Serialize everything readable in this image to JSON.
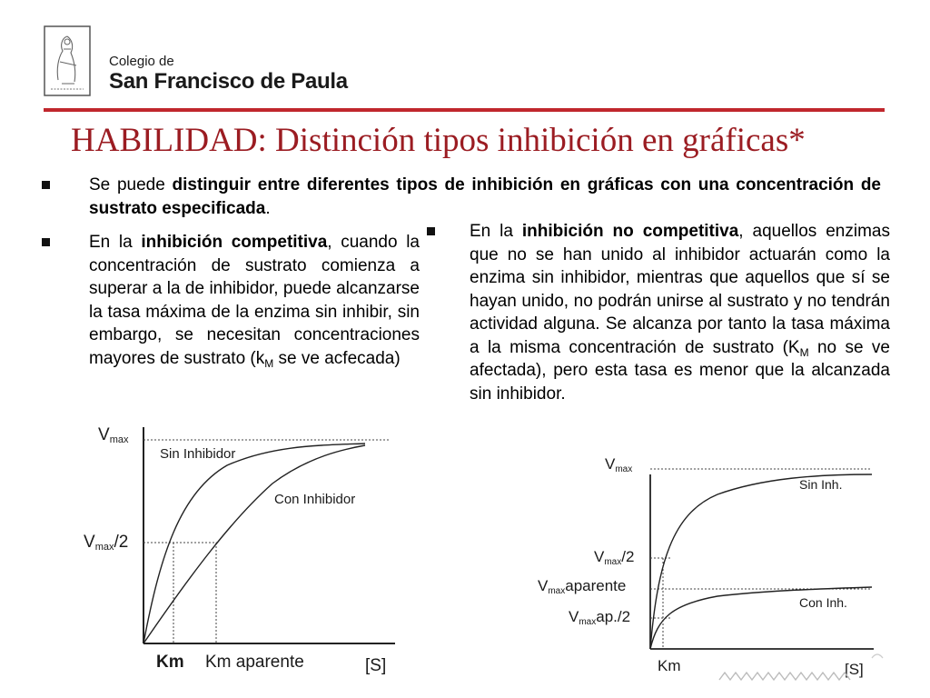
{
  "header": {
    "school_line1": "Colegio de",
    "school_line2": "San Francisco de Paula"
  },
  "slide": {
    "title": "HABILIDAD: Distinción tipos inhibición en gráficas*"
  },
  "intro": {
    "t1": "Se puede ",
    "b1": "distinguir entre diferentes tipos de inhibición en gráficas con una concentración de sustrato especificada",
    "t2": "."
  },
  "competitive": {
    "t1": "En la ",
    "b1": "inhibición competitiva",
    "t2": ", cuando la concentración de sustrato comienza a superar a la de inhibidor, puede alcanzarse la tasa máxima de la enzima sin inhibir, sin embargo, se necesitan concentraciones mayores de sustrato (k",
    "sub": "M",
    "t3": " se ve acfecada)"
  },
  "noncompetitive": {
    "t1": "En la ",
    "b1": "inhibición no competitiva",
    "t2": ", aquellos enzimas que no se han unido al inhibidor actuarán como la enzima sin inhibidor, mientras que aquellos que sí se hayan unido, no podrán unirse al sustrato y no tendrán actividad alguna. Se alcanza por tanto la tasa máxima a la misma concentración de sustrato (K",
    "sub": "M",
    "t3": " no se ve afectada), pero esta tasa es menor que la alcanzada sin inhibidor."
  },
  "graph_left": {
    "y_top_main": "V",
    "y_top_sub": "max",
    "y_half_main": "V",
    "y_half_sub": "max",
    "y_half_suffix": "/2",
    "curve1_label": "Sin Inhibidor",
    "curve2_label": "Con Inhibidor",
    "x_km": "Km",
    "x_km_apparent": "Km aparente",
    "x_axis": "[S]"
  },
  "graph_right": {
    "y_top_main": "V",
    "y_top_sub": "max",
    "y_half_main": "V",
    "y_half_sub": "max",
    "y_half_suffix": "/2",
    "y_app_main": "V",
    "y_app_sub": "max",
    "y_app_suffix": "aparente",
    "y_apphalf_main": "V",
    "y_apphalf_sub": "max",
    "y_apphalf_suffix": "ap./2",
    "curve1_label": "Sin Inh.",
    "curve2_label": "Con Inh.",
    "x_km": "Km",
    "x_axis": "[S]"
  },
  "colors": {
    "title": "#9b1c22",
    "rule": "#c0272d"
  }
}
